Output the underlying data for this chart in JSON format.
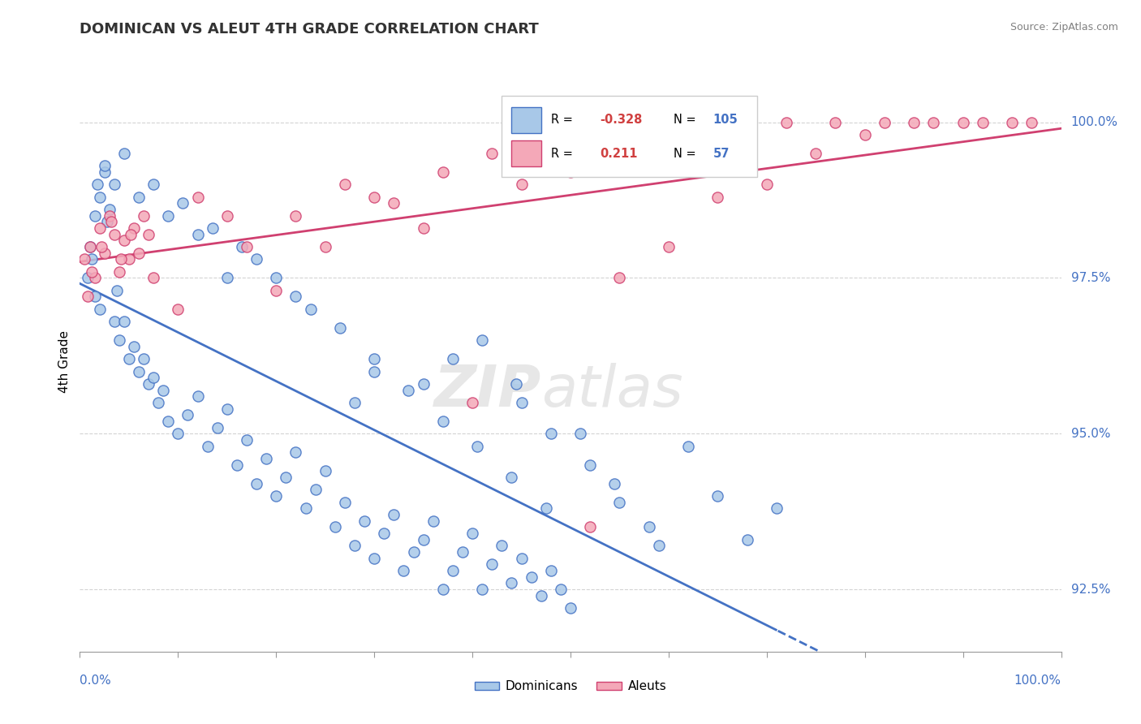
{
  "title": "DOMINICAN VS ALEUT 4TH GRADE CORRELATION CHART",
  "source": "Source: ZipAtlas.com",
  "ylabel": "4th Grade",
  "y_tick_labels": [
    "92.5%",
    "95.0%",
    "97.5%",
    "100.0%"
  ],
  "y_tick_values": [
    92.5,
    95.0,
    97.5,
    100.0
  ],
  "xlim": [
    0.0,
    100.0
  ],
  "ylim": [
    91.5,
    100.8
  ],
  "blue_color": "#A8C8E8",
  "pink_color": "#F4A8B8",
  "blue_line_color": "#4472C4",
  "pink_line_color": "#D04070",
  "dominicans_label": "Dominicans",
  "aleuts_label": "Aleuts",
  "watermark_zip": "ZIP",
  "watermark_atlas": "atlas",
  "blue_scatter_x": [
    1.5,
    2.0,
    1.8,
    2.5,
    3.0,
    2.8,
    1.0,
    1.2,
    0.8,
    1.5,
    2.0,
    3.5,
    4.0,
    3.8,
    5.0,
    4.5,
    6.0,
    5.5,
    7.0,
    6.5,
    8.0,
    7.5,
    9.0,
    8.5,
    10.0,
    11.0,
    12.0,
    13.0,
    14.0,
    15.0,
    16.0,
    17.0,
    18.0,
    19.0,
    20.0,
    21.0,
    22.0,
    23.0,
    24.0,
    25.0,
    26.0,
    27.0,
    28.0,
    29.0,
    30.0,
    31.0,
    32.0,
    33.0,
    34.0,
    35.0,
    36.0,
    37.0,
    38.0,
    39.0,
    40.0,
    41.0,
    42.0,
    43.0,
    44.0,
    45.0,
    46.0,
    47.0,
    48.0,
    49.0,
    50.0,
    28.0,
    30.0,
    35.0,
    38.0,
    22.0,
    18.0,
    15.0,
    12.0,
    9.0,
    6.0,
    3.5,
    2.5,
    4.5,
    7.5,
    10.5,
    13.5,
    16.5,
    20.0,
    23.5,
    26.5,
    30.0,
    33.5,
    37.0,
    40.5,
    44.0,
    47.5,
    51.0,
    54.5,
    58.0,
    41.0,
    44.5,
    48.0,
    52.0,
    55.0,
    59.0,
    62.0,
    65.0,
    68.0,
    71.0,
    45.0
  ],
  "blue_scatter_y": [
    98.5,
    98.8,
    99.0,
    99.2,
    98.6,
    98.4,
    98.0,
    97.8,
    97.5,
    97.2,
    97.0,
    96.8,
    96.5,
    97.3,
    96.2,
    96.8,
    96.0,
    96.4,
    95.8,
    96.2,
    95.5,
    95.9,
    95.2,
    95.7,
    95.0,
    95.3,
    95.6,
    94.8,
    95.1,
    95.4,
    94.5,
    94.9,
    94.2,
    94.6,
    94.0,
    94.3,
    94.7,
    93.8,
    94.1,
    94.4,
    93.5,
    93.9,
    93.2,
    93.6,
    93.0,
    93.4,
    93.7,
    92.8,
    93.1,
    93.3,
    93.6,
    92.5,
    92.8,
    93.1,
    93.4,
    92.5,
    92.9,
    93.2,
    92.6,
    93.0,
    92.7,
    92.4,
    92.8,
    92.5,
    92.2,
    95.5,
    96.0,
    95.8,
    96.2,
    97.2,
    97.8,
    97.5,
    98.2,
    98.5,
    98.8,
    99.0,
    99.3,
    99.5,
    99.0,
    98.7,
    98.3,
    98.0,
    97.5,
    97.0,
    96.7,
    96.2,
    95.7,
    95.2,
    94.8,
    94.3,
    93.8,
    95.0,
    94.2,
    93.5,
    96.5,
    95.8,
    95.0,
    94.5,
    93.9,
    93.2,
    94.8,
    94.0,
    93.3,
    93.8,
    95.5
  ],
  "pink_scatter_x": [
    0.5,
    1.0,
    1.5,
    2.0,
    2.5,
    3.0,
    3.5,
    4.0,
    4.5,
    5.0,
    5.5,
    6.0,
    6.5,
    7.0,
    10.0,
    15.0,
    20.0,
    25.0,
    30.0,
    35.0,
    40.0,
    45.0,
    50.0,
    55.0,
    60.0,
    65.0,
    70.0,
    75.0,
    80.0,
    85.0,
    90.0,
    95.0,
    0.8,
    1.2,
    2.2,
    3.2,
    4.2,
    5.2,
    7.5,
    12.0,
    17.0,
    22.0,
    27.0,
    32.0,
    37.0,
    42.0,
    47.0,
    52.0,
    57.0,
    62.0,
    67.0,
    72.0,
    77.0,
    82.0,
    87.0,
    92.0,
    97.0
  ],
  "pink_scatter_y": [
    97.8,
    98.0,
    97.5,
    98.3,
    97.9,
    98.5,
    98.2,
    97.6,
    98.1,
    97.8,
    98.3,
    97.9,
    98.5,
    98.2,
    97.0,
    98.5,
    97.3,
    98.0,
    98.8,
    98.3,
    95.5,
    99.0,
    99.2,
    97.5,
    98.0,
    98.8,
    99.0,
    99.5,
    99.8,
    100.0,
    100.0,
    100.0,
    97.2,
    97.6,
    98.0,
    98.4,
    97.8,
    98.2,
    97.5,
    98.8,
    98.0,
    98.5,
    99.0,
    98.7,
    99.2,
    99.5,
    99.8,
    93.5,
    99.3,
    99.6,
    99.8,
    100.0,
    100.0,
    100.0,
    100.0,
    100.0,
    100.0
  ]
}
